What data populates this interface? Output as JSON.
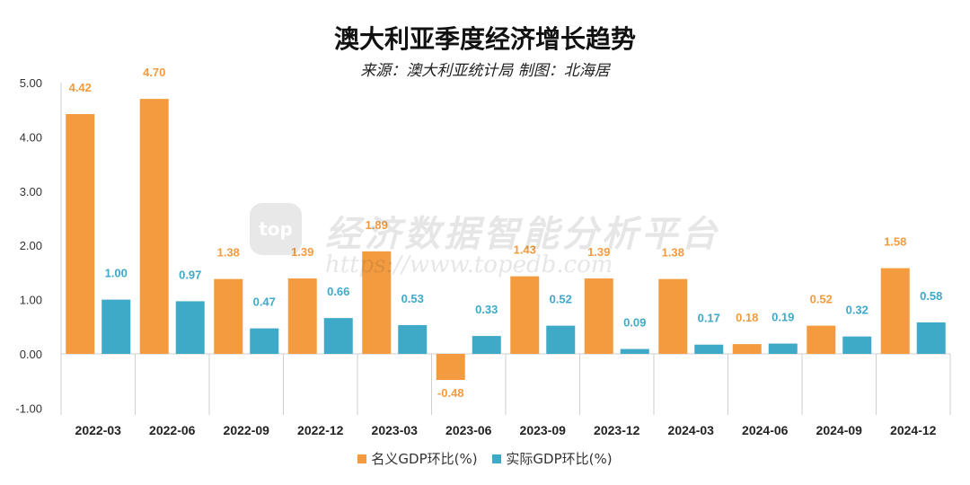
{
  "title": "澳大利亚季度经济增长趋势",
  "subtitle": "来源：澳大利亚统计局 制图：北海居",
  "watermark": {
    "logo": "top",
    "text": "经济数据智能分析平台",
    "url": "https://www.topedb.com"
  },
  "colors": {
    "nominal": "#F39B3E",
    "real": "#3FA9C8",
    "axis": "#cfcfcf"
  },
  "chart_data": {
    "type": "bar",
    "categories": [
      "2022-03",
      "2022-06",
      "2022-09",
      "2022-12",
      "2023-03",
      "2023-06",
      "2023-09",
      "2023-12",
      "2024-03",
      "2024-06",
      "2024-09",
      "2024-12"
    ],
    "series": [
      {
        "name": "名义GDP环比(%)",
        "values": [
          4.42,
          4.7,
          1.38,
          1.39,
          1.89,
          -0.48,
          1.43,
          1.39,
          1.38,
          0.18,
          0.52,
          1.58
        ],
        "labels": [
          "4.42",
          "4.70",
          "1.38",
          "1.39",
          "1.89",
          "-0.48",
          "1.43",
          "1.39",
          "1.38",
          "0.18",
          "0.52",
          "1.58"
        ]
      },
      {
        "name": "实际GDP环比(%)",
        "values": [
          1.0,
          0.97,
          0.47,
          0.66,
          0.53,
          0.33,
          0.52,
          0.09,
          0.17,
          0.19,
          0.32,
          0.58
        ],
        "labels": [
          "1.00",
          "0.97",
          "0.47",
          "0.66",
          "0.53",
          "0.33",
          "0.52",
          "0.09",
          "0.17",
          "0.19",
          "0.32",
          "0.58"
        ]
      }
    ],
    "ylim": [
      -1,
      5
    ],
    "yticks": [
      "5.00",
      "4.00",
      "3.00",
      "2.00",
      "1.00",
      "0.00",
      "-1.00"
    ],
    "ytick_values": [
      5,
      4,
      3,
      2,
      1,
      0,
      -1
    ],
    "legend_position": "bottom"
  }
}
